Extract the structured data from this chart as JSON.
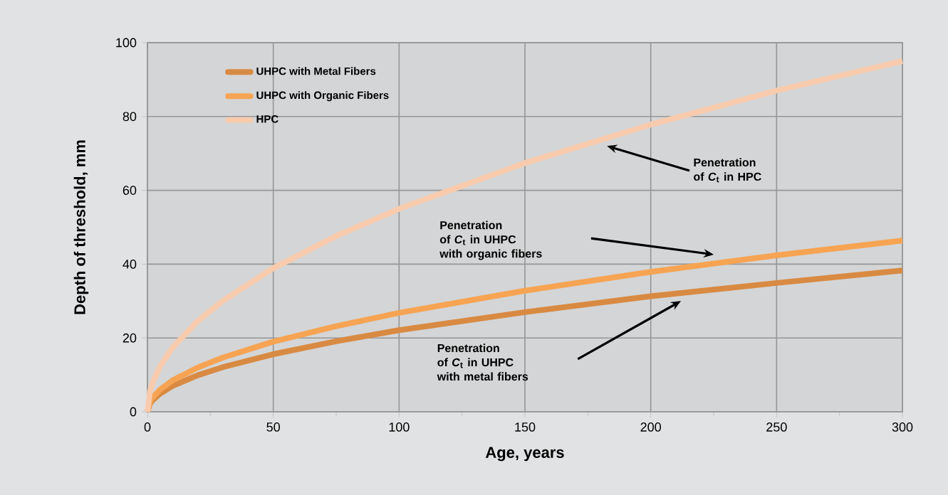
{
  "chart_data": {
    "type": "line",
    "xlabel": "Age, years",
    "ylabel": "Depth of threshold, mm",
    "x": [
      0,
      1,
      2,
      5,
      10,
      20,
      30,
      50,
      75,
      100,
      150,
      200,
      250,
      300
    ],
    "series": [
      {
        "name": "UHPC with Metal Fibers",
        "color": "#d98a42",
        "values": [
          0,
          2.2,
          3.1,
          4.9,
          7.0,
          9.9,
          12.1,
          15.6,
          19.1,
          22.1,
          27.0,
          31.3,
          34.9,
          38.3
        ]
      },
      {
        "name": "UHPC with Organic Fibers",
        "color": "#f6a453",
        "values": [
          0,
          2.7,
          3.8,
          6.0,
          8.5,
          12.0,
          14.7,
          19.0,
          23.2,
          26.8,
          32.8,
          37.9,
          42.4,
          46.4
        ]
      },
      {
        "name": "HPC",
        "color": "#f8cbae",
        "values": [
          0,
          5.5,
          7.8,
          12.3,
          17.4,
          24.6,
          30.1,
          38.9,
          47.6,
          55.0,
          67.4,
          77.8,
          87.0,
          95.0
        ]
      }
    ],
    "xlim": [
      0,
      300
    ],
    "ylim": [
      0,
      100
    ],
    "xticks": [
      0,
      50,
      100,
      150,
      200,
      250,
      300
    ],
    "yticks": [
      0,
      20,
      40,
      60,
      80,
      100
    ],
    "grid": true,
    "legend": "top left",
    "marker": "none",
    "line_style": "solid",
    "annotations": [
      "Penetration\nof *C*$_{t}$ in HPC",
      "Penetration\nof *C*$_{t}$ in UHPC\nwith organic fibers",
      "Penetration\nof *C*$_{t}$ in UHPC\nwith metal fibers"
    ]
  }
}
